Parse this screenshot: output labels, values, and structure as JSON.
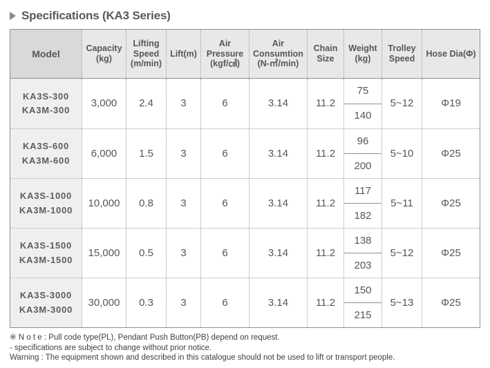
{
  "title": "Specifications (KA3 Series)",
  "table": {
    "headers": [
      "Model",
      "Capacity\n(kg)",
      "Lifting\nSpeed\n(m/min)",
      "Lift(m)",
      "Air\nPressure\n(kgf/㎠)",
      "Air\nConsumtion\n(N-㎥/min)",
      "Chain\nSize",
      "Weight\n(kg)",
      "Trolley\nSpeed",
      "Hose Dia(Φ)"
    ],
    "rows": [
      {
        "model": "KA3S-300\nKA3M-300",
        "capacity": "3,000",
        "lifting_speed": "2.4",
        "lift": "3",
        "air_pressure": "6",
        "air_consumption": "3.14",
        "chain_size": "11.2",
        "weight_top": "75",
        "weight_bottom": "140",
        "trolley_speed": "5~12",
        "hose_dia": "Φ19"
      },
      {
        "model": "KA3S-600\nKA3M-600",
        "capacity": "6,000",
        "lifting_speed": "1.5",
        "lift": "3",
        "air_pressure": "6",
        "air_consumption": "3.14",
        "chain_size": "11.2",
        "weight_top": "96",
        "weight_bottom": "200",
        "trolley_speed": "5~10",
        "hose_dia": "Φ25"
      },
      {
        "model": "KA3S-1000\nKA3M-1000",
        "capacity": "10,000",
        "lifting_speed": "0.8",
        "lift": "3",
        "air_pressure": "6",
        "air_consumption": "3.14",
        "chain_size": "11.2",
        "weight_top": "117",
        "weight_bottom": "182",
        "trolley_speed": "5~11",
        "hose_dia": "Φ25"
      },
      {
        "model": "KA3S-1500\nKA3M-1500",
        "capacity": "15,000",
        "lifting_speed": "0.5",
        "lift": "3",
        "air_pressure": "6",
        "air_consumption": "3.14",
        "chain_size": "11.2",
        "weight_top": "138",
        "weight_bottom": "203",
        "trolley_speed": "5~12",
        "hose_dia": "Φ25"
      },
      {
        "model": "KA3S-3000\nKA3M-3000",
        "capacity": "30,000",
        "lifting_speed": "0.3",
        "lift": "3",
        "air_pressure": "6",
        "air_consumption": "3.14",
        "chain_size": "11.2",
        "weight_top": "150",
        "weight_bottom": "215",
        "trolley_speed": "5~13",
        "hose_dia": "Φ25"
      }
    ]
  },
  "notes": {
    "note1": "※ N o t e : Pull code type(PL), Pendant Push Button(PB) depend on request.",
    "note2": "- specifications are subject to change without prior notice.",
    "note3": "Warning : The equipment shown and described in this catalogue should not be used to lift or transport people."
  },
  "colors": {
    "header_bg": "#e8e8e8",
    "model_header_bg": "#d9d9d9",
    "model_column_bg": "#efefef",
    "border_solid": "#8f8f8f",
    "border_dotted": "#9b9b9b",
    "text": "#565656"
  }
}
